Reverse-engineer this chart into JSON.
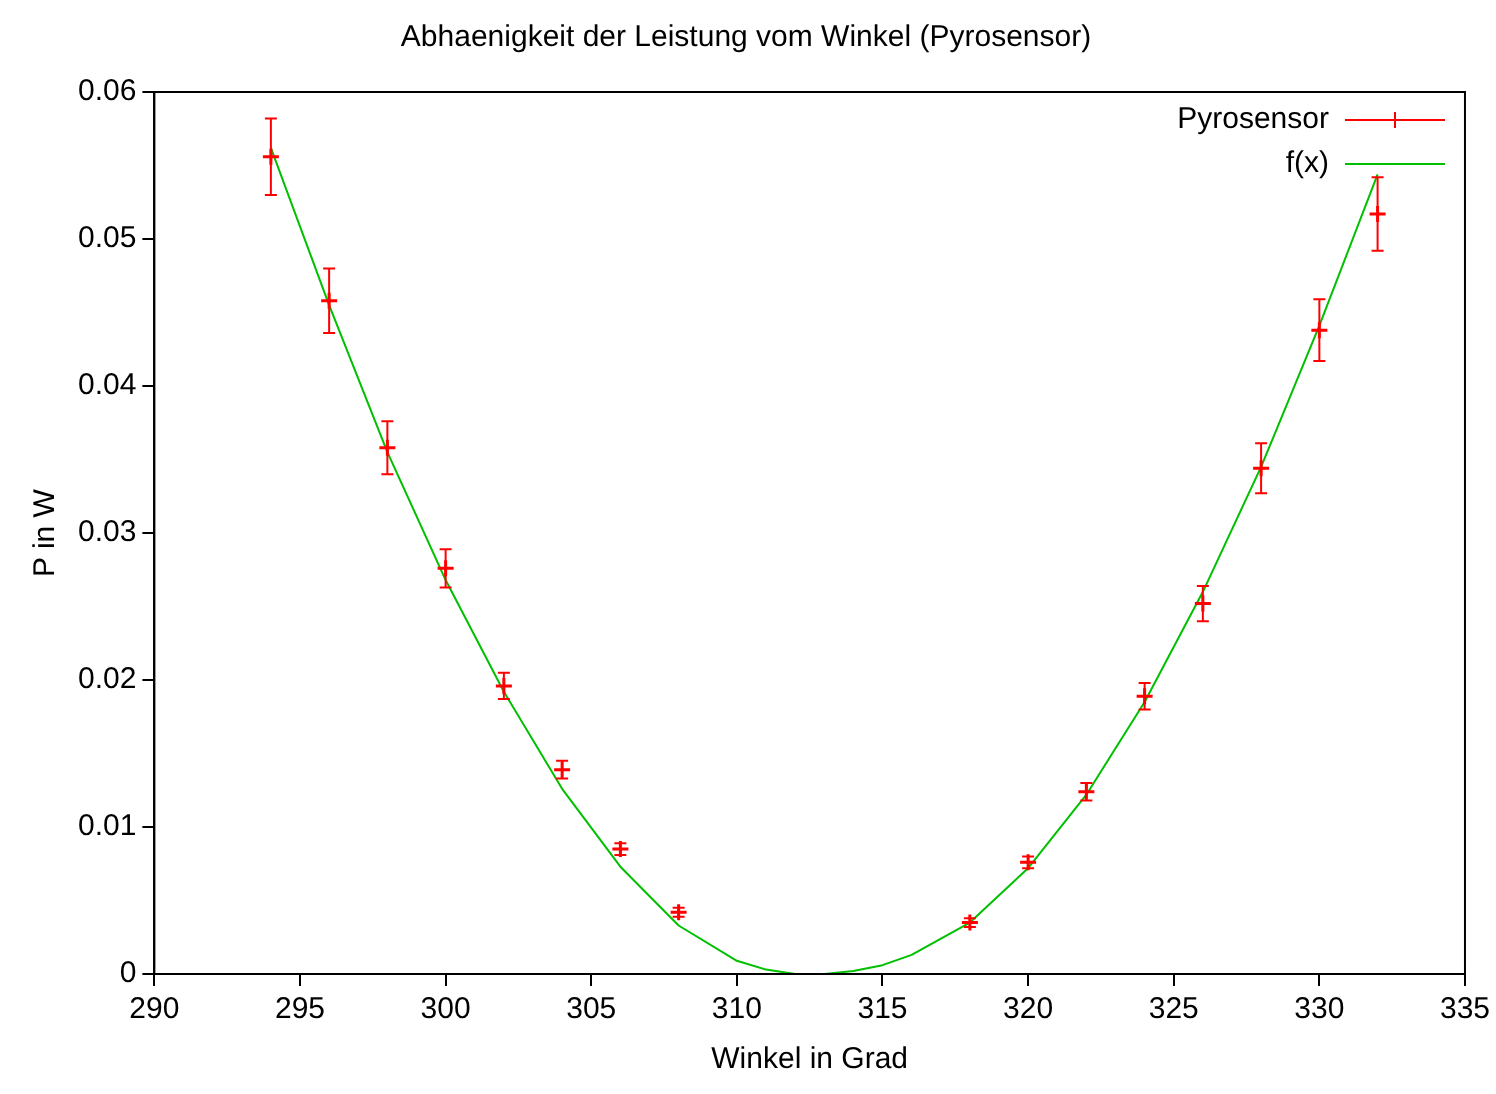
{
  "chart_data": {
    "type": "scatter",
    "title": "Abhaenigkeit der Leistung vom Winkel (Pyrosensor)",
    "xlabel": "Winkel in Grad",
    "ylabel": "P in W",
    "xlim": [
      290,
      335
    ],
    "xticks": [
      290,
      295,
      300,
      305,
      310,
      315,
      320,
      325,
      330,
      335
    ],
    "ylim": [
      0,
      0.06
    ],
    "yticks": [
      0,
      0.01,
      0.02,
      0.03,
      0.04,
      0.05,
      0.06
    ],
    "grid": false,
    "legend": "top right",
    "series": [
      {
        "name": "Pyrosensor",
        "marker": "cross",
        "color": "#ff0000",
        "x": [
          294,
          296,
          298,
          300,
          302,
          304,
          306,
          308,
          318,
          320,
          322,
          324,
          326,
          328,
          330,
          332
        ],
        "values": [
          0.0556,
          0.0458,
          0.0358,
          0.0276,
          0.0196,
          0.0139,
          0.0085,
          0.0042,
          0.0035,
          0.0076,
          0.0124,
          0.0189,
          0.0252,
          0.0344,
          0.0438,
          0.0517
        ],
        "errors": [
          0.0026,
          0.0022,
          0.0018,
          0.0013,
          0.0009,
          0.0006,
          0.0004,
          0.0003,
          0.0003,
          0.0004,
          0.0006,
          0.0009,
          0.0012,
          0.0017,
          0.0021,
          0.0025
        ]
      },
      {
        "name": "f(x)",
        "type": "line",
        "color": "#00c000",
        "x": [
          294,
          296,
          298,
          300,
          302,
          304,
          306,
          308,
          310,
          311,
          312,
          313,
          314,
          315,
          316,
          318,
          320,
          322,
          324,
          326,
          328,
          330,
          332
        ],
        "values": [
          0.0562,
          0.0455,
          0.0355,
          0.0268,
          0.0192,
          0.0126,
          0.0073,
          0.0033,
          0.0009,
          0.0003,
          0.0,
          0.0,
          0.0002,
          0.0006,
          0.0013,
          0.0035,
          0.0072,
          0.0122,
          0.0185,
          0.026,
          0.0345,
          0.0441,
          0.0544
        ]
      }
    ]
  }
}
